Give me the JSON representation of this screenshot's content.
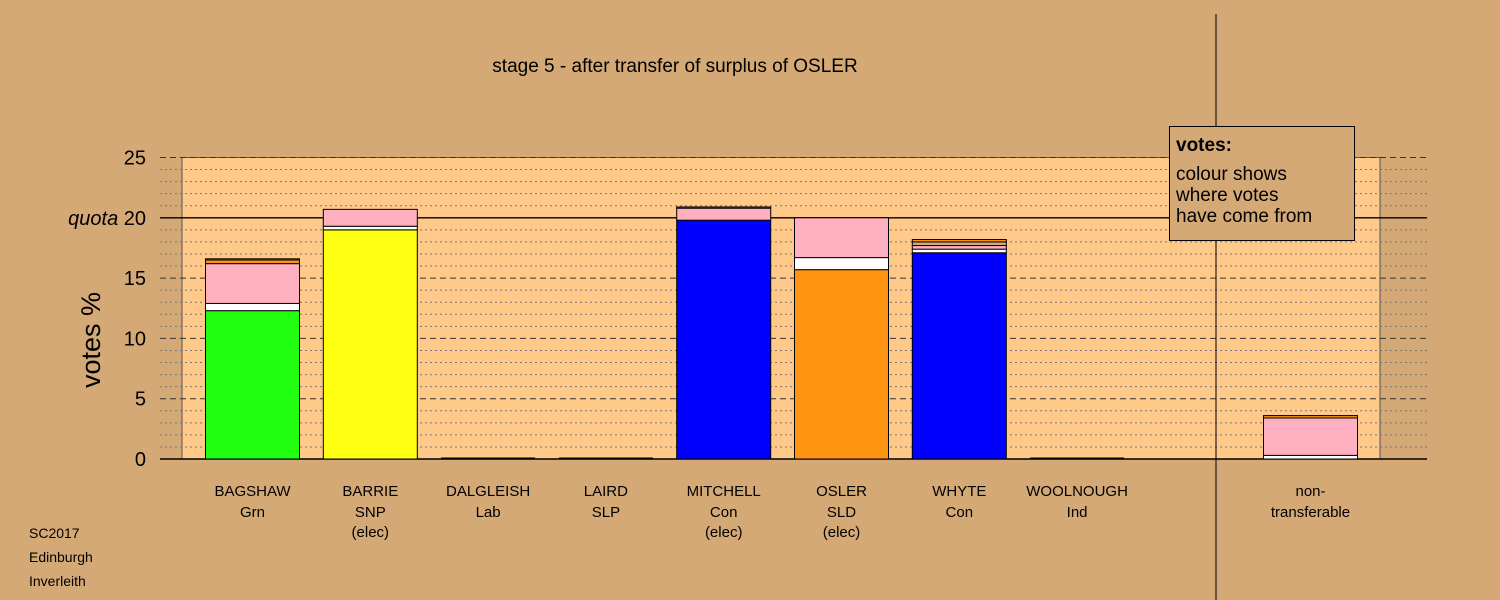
{
  "chart_data": {
    "type": "bar",
    "stacked": true,
    "title": "stage 5 - after transfer of surplus of OSLER",
    "ylabel": "votes %",
    "ylim": [
      0,
      25
    ],
    "yticks": [
      0,
      5,
      10,
      15,
      20,
      25
    ],
    "quota": 20,
    "quota_label": "quota",
    "grid": "dashed at 5, dotted at 1",
    "candidates": [
      {
        "name": "BAGSHAW",
        "party": "Grn",
        "status": "",
        "segments": [
          {
            "color": "#22ff11",
            "value": 12.3
          },
          {
            "color": "#ffffff",
            "value": 0.6
          },
          {
            "color": "#ffb0c0",
            "value": 3.3
          },
          {
            "color": "#ff9410",
            "value": 0.3
          },
          {
            "color": "#d4a976",
            "value": 0.1
          }
        ]
      },
      {
        "name": "BARRIE",
        "party": "SNP",
        "status": "(elec)",
        "segments": [
          {
            "color": "#ffff11",
            "value": 19.0
          },
          {
            "color": "#ffffff",
            "value": 0.3
          },
          {
            "color": "#ffb0c0",
            "value": 1.4
          }
        ]
      },
      {
        "name": "DALGLEISH",
        "party": "Lab",
        "status": "",
        "segments": []
      },
      {
        "name": "LAIRD",
        "party": "SLP",
        "status": "",
        "segments": []
      },
      {
        "name": "MITCHELL",
        "party": "Con",
        "status": "(elec)",
        "segments": [
          {
            "color": "#0000ff",
            "value": 19.8
          },
          {
            "color": "#ffb0c0",
            "value": 1.0
          },
          {
            "color": "#ff9410",
            "value": 0.1
          }
        ]
      },
      {
        "name": "OSLER",
        "party": "SLD",
        "status": "(elec)",
        "segments": [
          {
            "color": "#ff9410",
            "value": 15.7
          },
          {
            "color": "#ffffff",
            "value": 1.0
          },
          {
            "color": "#ffb0c0",
            "value": 3.3
          }
        ]
      },
      {
        "name": "WHYTE",
        "party": "Con",
        "status": "",
        "segments": [
          {
            "color": "#0000ff",
            "value": 17.1
          },
          {
            "color": "#ffffff",
            "value": 0.3
          },
          {
            "color": "#ffb0c0",
            "value": 0.3
          },
          {
            "color": "#d4a976",
            "value": 0.3
          },
          {
            "color": "#ff9410",
            "value": 0.2
          }
        ]
      },
      {
        "name": "WOOLNOUGH",
        "party": "Ind",
        "status": "",
        "segments": []
      }
    ],
    "nontransferable": {
      "label_line1": "non-",
      "label_line2": "transferable",
      "segments": [
        {
          "color": "#ffffff",
          "value": 0.3
        },
        {
          "color": "#ffb0c0",
          "value": 3.1
        },
        {
          "color": "#ff9410",
          "value": 0.2
        }
      ]
    }
  },
  "legend": {
    "title": "votes:",
    "line1": "colour shows",
    "line2": "where votes",
    "line3": "have come from"
  },
  "source": {
    "line1": "SC2017",
    "line2": "Edinburgh",
    "line3": "Inverleith"
  },
  "colors": {
    "background": "#d4a976",
    "plot_area": "#ffc98a"
  }
}
